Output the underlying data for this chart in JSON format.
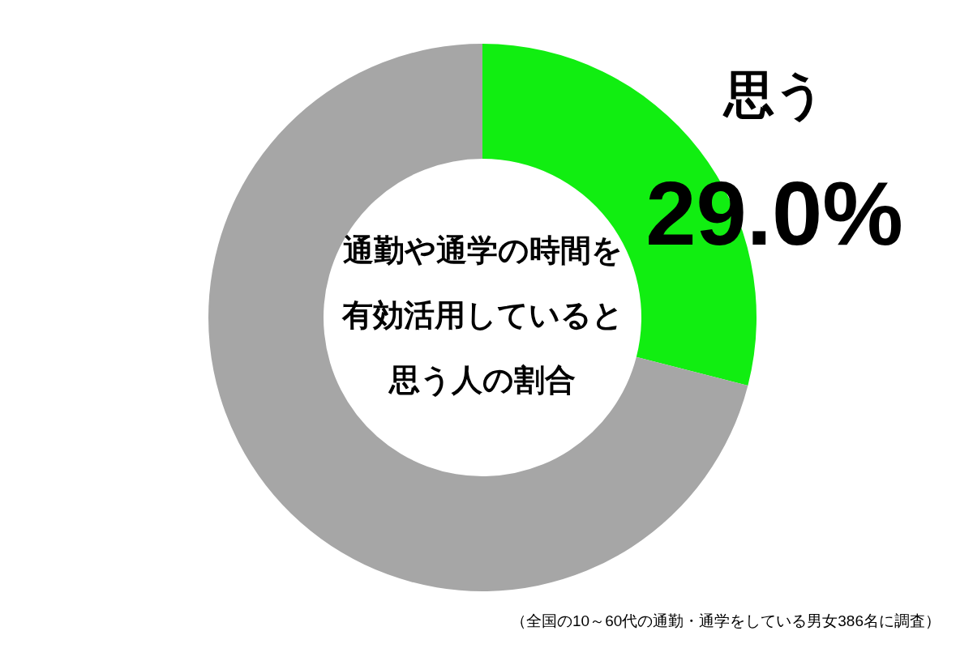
{
  "chart_data": {
    "type": "donut",
    "title": "通勤や通学の時間を有効活用していると思う人の割合",
    "categories": [
      "思う",
      null
    ],
    "values": [
      29.0,
      71.0
    ],
    "colors": [
      "#11ee11",
      "#a6a6a6"
    ],
    "value_labels": [
      "29.0%",
      null
    ],
    "annotations": [
      "（全国の10～60代の通勤・通学をしている男女386名に調査）"
    ]
  }
}
